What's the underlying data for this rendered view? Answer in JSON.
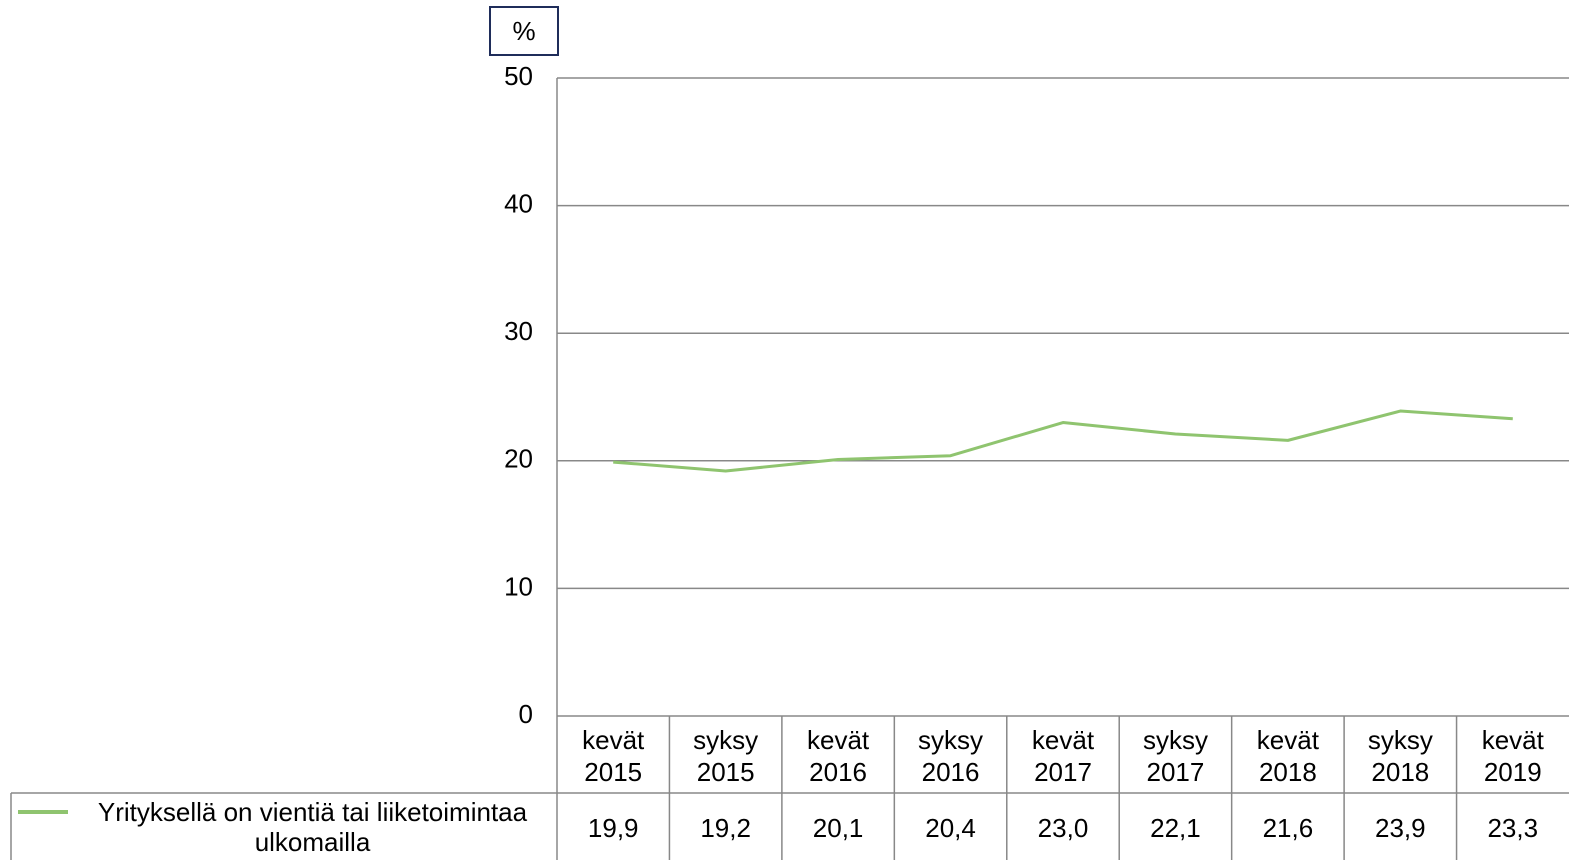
{
  "chart_data": {
    "type": "line",
    "y_axis_label": "%",
    "categories": [
      "kevät 2015",
      "syksy 2015",
      "kevät 2016",
      "syksy 2016",
      "kevät 2017",
      "syksy 2017",
      "kevät 2018",
      "syksy 2018",
      "kevät 2019"
    ],
    "series": [
      {
        "name": "Yrityksellä on vientiä tai liiketoimintaa ulkomailla",
        "color": "#8fc46f",
        "values": [
          19.9,
          19.2,
          20.1,
          20.4,
          23.0,
          22.1,
          21.6,
          23.9,
          23.3
        ],
        "value_labels": [
          "19,9",
          "19,2",
          "20,1",
          "20,4",
          "23,0",
          "22,1",
          "21,6",
          "23,9",
          "23,3"
        ]
      }
    ],
    "ylim": [
      0,
      50
    ],
    "yticks": [
      0,
      10,
      20,
      30,
      40,
      50
    ],
    "grid": true
  }
}
